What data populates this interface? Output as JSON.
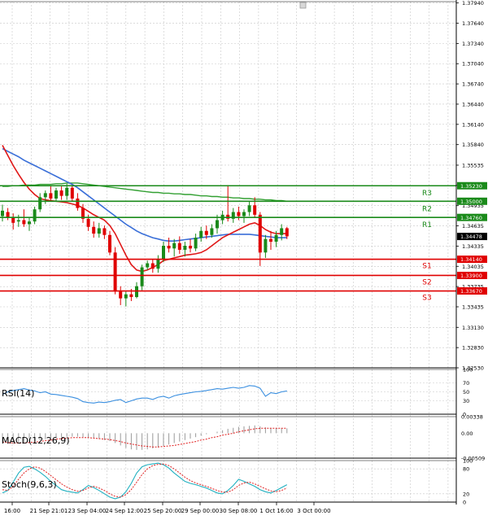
{
  "chart_data": [
    {
      "type": "candlestick",
      "ylim": [
        1.3253,
        1.3796
      ],
      "y_ticks": [
        "1.37940",
        "1.37640",
        "1.37340",
        "1.37040",
        "1.36740",
        "1.36440",
        "1.36140",
        "1.35840",
        "1.35535",
        "1.35235",
        "1.34935",
        "1.34635",
        "1.34335",
        "1.34035",
        "1.33735",
        "1.33435",
        "1.33130",
        "1.32830",
        "1.32530"
      ],
      "x_ticks": [
        "16:00",
        "21 Sep 21:01",
        "23 Sep 04:00",
        "24 Sep 12:00",
        "25 Sep 20:00",
        "29 Sep 00:00",
        "30 Sep 08:00",
        "1 Oct 16:00",
        "3 Oct 00:00"
      ],
      "last_price": "1.34478",
      "levels": [
        {
          "name": "R3",
          "value": 1.3523,
          "label": "1.35230",
          "color": "#1a8a1a"
        },
        {
          "name": "R2",
          "value": 1.35,
          "label": "1.35000",
          "color": "#1a8a1a"
        },
        {
          "name": "R1",
          "value": 1.3476,
          "label": "1.34760",
          "color": "#1a8a1a"
        },
        {
          "name": "S1",
          "value": 1.3414,
          "label": "1.34140",
          "color": "#e00000"
        },
        {
          "name": "S2",
          "value": 1.339,
          "label": "1.33900",
          "color": "#e00000"
        },
        {
          "name": "S3",
          "value": 1.3367,
          "label": "1.33670",
          "color": "#e00000"
        }
      ],
      "candles": [
        {
          "o": 1.3478,
          "h": 1.3495,
          "l": 1.347,
          "c": 1.3486
        },
        {
          "o": 1.3484,
          "h": 1.349,
          "l": 1.3472,
          "c": 1.3476
        },
        {
          "o": 1.3476,
          "h": 1.3482,
          "l": 1.3458,
          "c": 1.3468
        },
        {
          "o": 1.347,
          "h": 1.348,
          "l": 1.3462,
          "c": 1.3472
        },
        {
          "o": 1.3472,
          "h": 1.3488,
          "l": 1.3462,
          "c": 1.3466
        },
        {
          "o": 1.3466,
          "h": 1.3475,
          "l": 1.3456,
          "c": 1.347
        },
        {
          "o": 1.347,
          "h": 1.3492,
          "l": 1.3466,
          "c": 1.3488
        },
        {
          "o": 1.3488,
          "h": 1.3512,
          "l": 1.3484,
          "c": 1.3506
        },
        {
          "o": 1.3506,
          "h": 1.3516,
          "l": 1.3496,
          "c": 1.3512
        },
        {
          "o": 1.3512,
          "h": 1.3522,
          "l": 1.35,
          "c": 1.3504
        },
        {
          "o": 1.3504,
          "h": 1.352,
          "l": 1.35,
          "c": 1.3516
        },
        {
          "o": 1.3516,
          "h": 1.3522,
          "l": 1.3502,
          "c": 1.3508
        },
        {
          "o": 1.3508,
          "h": 1.3526,
          "l": 1.3502,
          "c": 1.352
        },
        {
          "o": 1.352,
          "h": 1.3524,
          "l": 1.35,
          "c": 1.3504
        },
        {
          "o": 1.3504,
          "h": 1.3512,
          "l": 1.3486,
          "c": 1.349
        },
        {
          "o": 1.349,
          "h": 1.3496,
          "l": 1.3468,
          "c": 1.3474
        },
        {
          "o": 1.3474,
          "h": 1.348,
          "l": 1.3456,
          "c": 1.3462
        },
        {
          "o": 1.3462,
          "h": 1.347,
          "l": 1.3446,
          "c": 1.3452
        },
        {
          "o": 1.3452,
          "h": 1.3468,
          "l": 1.3446,
          "c": 1.346
        },
        {
          "o": 1.346,
          "h": 1.3464,
          "l": 1.3444,
          "c": 1.345
        },
        {
          "o": 1.345,
          "h": 1.3456,
          "l": 1.342,
          "c": 1.3424
        },
        {
          "o": 1.3424,
          "h": 1.3432,
          "l": 1.3362,
          "c": 1.3366
        },
        {
          "o": 1.3366,
          "h": 1.3374,
          "l": 1.3346,
          "c": 1.3356
        },
        {
          "o": 1.3356,
          "h": 1.3366,
          "l": 1.3344,
          "c": 1.3362
        },
        {
          "o": 1.3362,
          "h": 1.337,
          "l": 1.3352,
          "c": 1.3358
        },
        {
          "o": 1.3358,
          "h": 1.338,
          "l": 1.3356,
          "c": 1.3374
        },
        {
          "o": 1.3374,
          "h": 1.3406,
          "l": 1.3368,
          "c": 1.3402
        },
        {
          "o": 1.3402,
          "h": 1.3412,
          "l": 1.3398,
          "c": 1.3408
        },
        {
          "o": 1.3408,
          "h": 1.3414,
          "l": 1.3394,
          "c": 1.34
        },
        {
          "o": 1.34,
          "h": 1.342,
          "l": 1.3394,
          "c": 1.3414
        },
        {
          "o": 1.3414,
          "h": 1.344,
          "l": 1.341,
          "c": 1.3434
        },
        {
          "o": 1.3434,
          "h": 1.3446,
          "l": 1.3424,
          "c": 1.343
        },
        {
          "o": 1.343,
          "h": 1.3444,
          "l": 1.3418,
          "c": 1.3438
        },
        {
          "o": 1.3438,
          "h": 1.3448,
          "l": 1.3422,
          "c": 1.3428
        },
        {
          "o": 1.3428,
          "h": 1.344,
          "l": 1.3418,
          "c": 1.3434
        },
        {
          "o": 1.3434,
          "h": 1.3444,
          "l": 1.3424,
          "c": 1.343
        },
        {
          "o": 1.343,
          "h": 1.3452,
          "l": 1.3426,
          "c": 1.3446
        },
        {
          "o": 1.3446,
          "h": 1.3462,
          "l": 1.344,
          "c": 1.3456
        },
        {
          "o": 1.3456,
          "h": 1.3464,
          "l": 1.3444,
          "c": 1.345
        },
        {
          "o": 1.345,
          "h": 1.3466,
          "l": 1.3446,
          "c": 1.346
        },
        {
          "o": 1.346,
          "h": 1.348,
          "l": 1.3452,
          "c": 1.3472
        },
        {
          "o": 1.3472,
          "h": 1.3486,
          "l": 1.3466,
          "c": 1.348
        },
        {
          "o": 1.348,
          "h": 1.3524,
          "l": 1.347,
          "c": 1.3474
        },
        {
          "o": 1.3474,
          "h": 1.349,
          "l": 1.3468,
          "c": 1.3484
        },
        {
          "o": 1.3484,
          "h": 1.3492,
          "l": 1.3472,
          "c": 1.3478
        },
        {
          "o": 1.3478,
          "h": 1.3488,
          "l": 1.3468,
          "c": 1.3484
        },
        {
          "o": 1.3484,
          "h": 1.35,
          "l": 1.3478,
          "c": 1.3494
        },
        {
          "o": 1.3494,
          "h": 1.3506,
          "l": 1.3476,
          "c": 1.348
        },
        {
          "o": 1.348,
          "h": 1.3484,
          "l": 1.3404,
          "c": 1.3424
        },
        {
          "o": 1.3424,
          "h": 1.345,
          "l": 1.3416,
          "c": 1.3444
        },
        {
          "o": 1.3444,
          "h": 1.3456,
          "l": 1.3428,
          "c": 1.344
        },
        {
          "o": 1.344,
          "h": 1.3456,
          "l": 1.3432,
          "c": 1.345
        },
        {
          "o": 1.345,
          "h": 1.3466,
          "l": 1.3442,
          "c": 1.346
        },
        {
          "o": 1.346,
          "h": 1.3462,
          "l": 1.3444,
          "c": 1.3448
        }
      ],
      "ma_fast": [
        1.3583,
        1.3568,
        1.3553,
        1.354,
        1.3528,
        1.3518,
        1.351,
        1.3504,
        1.3502,
        1.3501,
        1.35,
        1.3499,
        1.3498,
        1.3496,
        1.3494,
        1.349,
        1.3485,
        1.348,
        1.3476,
        1.3472,
        1.3464,
        1.3452,
        1.3436,
        1.342,
        1.3406,
        1.3398,
        1.3396,
        1.3398,
        1.3402,
        1.3406,
        1.3412,
        1.3414,
        1.3416,
        1.3418,
        1.342,
        1.3421,
        1.3422,
        1.3424,
        1.3428,
        1.3434,
        1.344,
        1.3446,
        1.345,
        1.3454,
        1.3458,
        1.3462,
        1.3466,
        1.3468,
        1.3464,
        1.3458,
        1.3454,
        1.3452,
        1.3452,
        1.3452
      ],
      "ma_mid": [
        1.3578,
        1.3574,
        1.357,
        1.3566,
        1.3561,
        1.3557,
        1.3553,
        1.3549,
        1.3545,
        1.3541,
        1.3537,
        1.3533,
        1.3529,
        1.3525,
        1.352,
        1.3514,
        1.3508,
        1.3502,
        1.3496,
        1.349,
        1.3484,
        1.3478,
        1.3472,
        1.3466,
        1.3461,
        1.3456,
        1.3452,
        1.3449,
        1.3446,
        1.3444,
        1.3442,
        1.3441,
        1.3441,
        1.3442,
        1.3443,
        1.3444,
        1.3445,
        1.3446,
        1.3447,
        1.3448,
        1.3449,
        1.345,
        1.3451,
        1.3451,
        1.3451,
        1.3451,
        1.3451,
        1.345,
        1.3449,
        1.3448,
        1.3447,
        1.3446,
        1.3446,
        1.3446
      ],
      "ma_slow": [
        1.3522,
        1.3522,
        1.3523,
        1.3523,
        1.3524,
        1.3524,
        1.3524,
        1.3525,
        1.3525,
        1.3525,
        1.3526,
        1.3526,
        1.3527,
        1.3527,
        1.3527,
        1.3526,
        1.3525,
        1.3524,
        1.3523,
        1.3522,
        1.3521,
        1.352,
        1.3519,
        1.3518,
        1.3517,
        1.3516,
        1.3515,
        1.3514,
        1.3513,
        1.3513,
        1.3512,
        1.3512,
        1.3511,
        1.3511,
        1.351,
        1.351,
        1.3509,
        1.3508,
        1.3508,
        1.3507,
        1.3507,
        1.3506,
        1.3506,
        1.3505,
        1.3505,
        1.3504,
        1.3504,
        1.3503,
        1.3503,
        1.3502,
        1.3502,
        1.3501,
        1.3501,
        1.35
      ]
    },
    {
      "type": "line",
      "title": "RSI(14)",
      "ylim": [
        0,
        100
      ],
      "y_ticks": [
        "100",
        "70",
        "50",
        "30",
        "0"
      ],
      "series": [
        {
          "values": [
            44,
            50,
            53,
            55,
            57,
            54,
            52,
            48,
            50,
            45,
            44,
            42,
            40,
            38,
            35,
            28,
            26,
            25,
            27,
            26,
            28,
            31,
            33,
            26,
            30,
            34,
            36,
            36,
            33,
            38,
            40,
            36,
            41,
            44,
            46,
            48,
            50,
            51,
            53,
            55,
            57,
            56,
            58,
            60,
            58,
            60,
            64,
            63,
            58,
            40,
            48,
            46,
            50,
            52
          ]
        }
      ]
    },
    {
      "type": "bar",
      "title": "MACD(12,26,9)",
      "ylim": [
        -0.00509,
        0.00338
      ],
      "y_ticks": [
        "0.00338",
        "0.00",
        "-0.00509"
      ],
      "series": [
        {
          "name": "MACD",
          "values": [
            -0.0021,
            -0.0022,
            -0.0022,
            -0.0021,
            -0.002,
            -0.0018,
            -0.0016,
            -0.0014,
            -0.0012,
            -0.001,
            -0.0009,
            -0.0008,
            -0.0007,
            -0.0007,
            -0.0007,
            -0.0008,
            -0.0009,
            -0.001,
            -0.0012,
            -0.0014,
            -0.0016,
            -0.002,
            -0.0025,
            -0.003,
            -0.0033,
            -0.0034,
            -0.0034,
            -0.0033,
            -0.0031,
            -0.0029,
            -0.0026,
            -0.0023,
            -0.002,
            -0.0017,
            -0.0014,
            -0.0011,
            -0.0008,
            -0.0005,
            -0.0002,
            0.0,
            0.0003,
            0.0006,
            0.0009,
            0.0011,
            0.0013,
            0.0014,
            0.0015,
            0.0016,
            0.0014,
            0.0012,
            0.0011,
            0.001,
            0.001,
            0.001
          ]
        },
        {
          "name": "Signal",
          "values": [
            -0.0018,
            -0.0019,
            -0.002,
            -0.002,
            -0.002,
            -0.0019,
            -0.0018,
            -0.0017,
            -0.0015,
            -0.0014,
            -0.0012,
            -0.0011,
            -0.001,
            -0.0009,
            -0.0009,
            -0.0009,
            -0.0009,
            -0.001,
            -0.0011,
            -0.0012,
            -0.0013,
            -0.0015,
            -0.0017,
            -0.002,
            -0.0022,
            -0.0024,
            -0.0026,
            -0.0027,
            -0.0028,
            -0.0028,
            -0.0027,
            -0.0026,
            -0.0025,
            -0.0023,
            -0.0021,
            -0.0019,
            -0.0017,
            -0.0014,
            -0.0012,
            -0.0009,
            -0.0007,
            -0.0004,
            -0.0002,
            0.0,
            0.0003,
            0.0005,
            0.0007,
            0.0009,
            0.001,
            0.001,
            0.001,
            0.001,
            0.001,
            0.001
          ]
        }
      ]
    },
    {
      "type": "line",
      "title": "Stoch(9,6,3)",
      "ylim": [
        0,
        100
      ],
      "y_ticks": [
        "100",
        "80",
        "20",
        "0"
      ],
      "series": [
        {
          "values": [
            22,
            28,
            48,
            70,
            84,
            86,
            80,
            72,
            62,
            50,
            40,
            30,
            26,
            24,
            22,
            30,
            40,
            35,
            28,
            20,
            12,
            8,
            12,
            25,
            45,
            70,
            85,
            90,
            92,
            94,
            90,
            82,
            70,
            60,
            50,
            45,
            42,
            38,
            34,
            28,
            22,
            20,
            28,
            40,
            55,
            50,
            44,
            38,
            30,
            25,
            22,
            28,
            35,
            42
          ]
        },
        {
          "values": [
            30,
            28,
            38,
            55,
            70,
            80,
            85,
            82,
            74,
            64,
            54,
            44,
            36,
            30,
            26,
            28,
            34,
            38,
            34,
            28,
            20,
            14,
            12,
            18,
            30,
            48,
            66,
            80,
            88,
            91,
            92,
            88,
            80,
            70,
            60,
            52,
            46,
            42,
            38,
            33,
            28,
            24,
            24,
            30,
            40,
            46,
            48,
            44,
            38,
            32,
            27,
            25,
            28,
            34
          ]
        }
      ]
    }
  ]
}
